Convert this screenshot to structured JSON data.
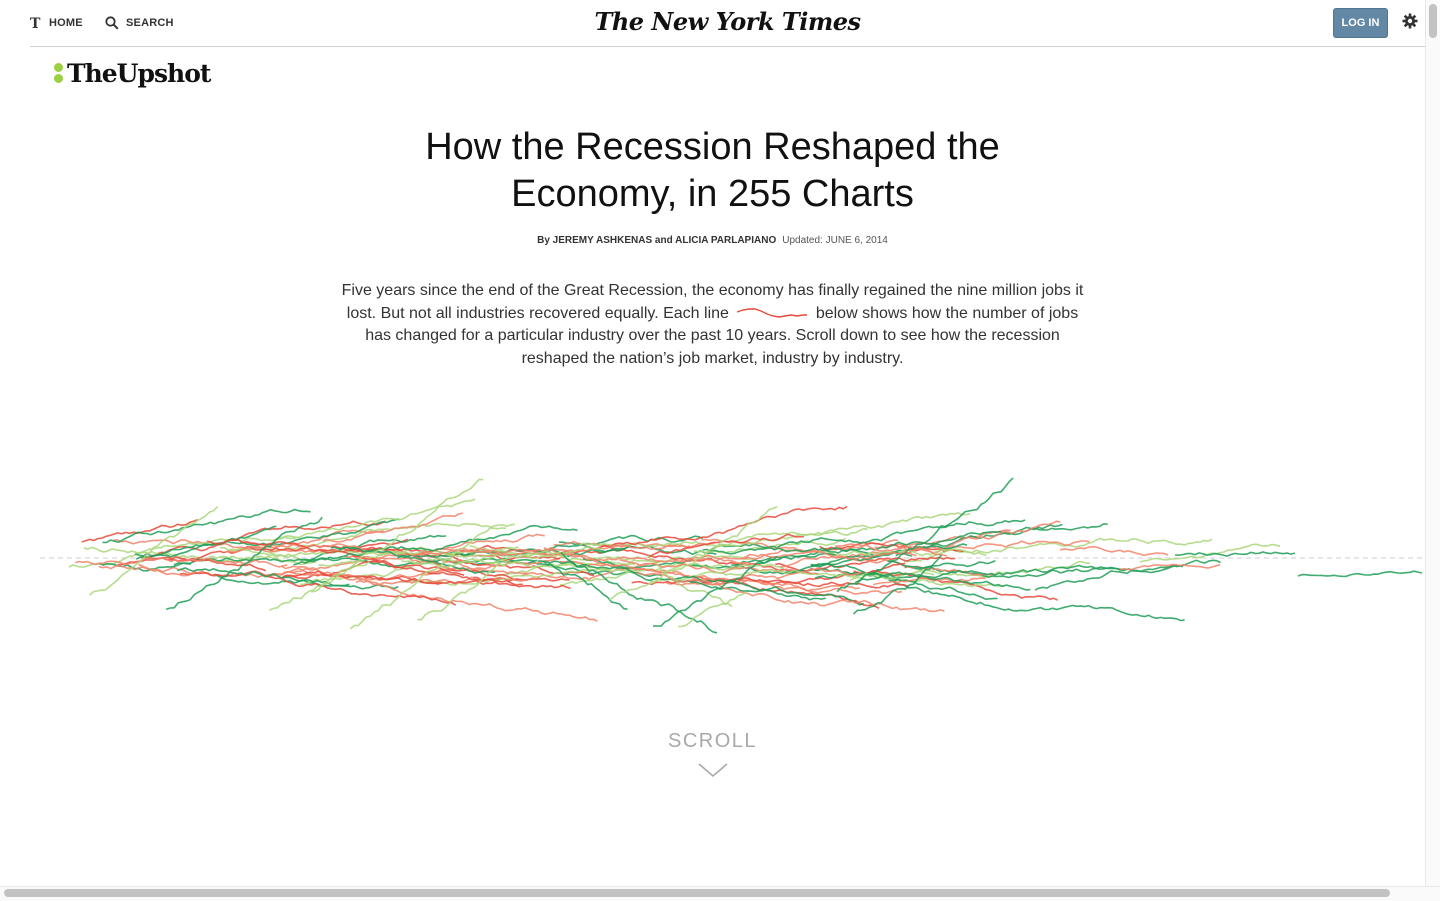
{
  "nav": {
    "home_label": "HOME",
    "search_label": "SEARCH",
    "masthead": "The New York Times",
    "login_label": "LOG IN"
  },
  "section": {
    "logo_text": "TheUpshot"
  },
  "article": {
    "headline_line1": "How the Recession Reshaped the",
    "headline_line2": "Economy, in 255 Charts",
    "byline": "By JEREMY ASHKENAS and ALICIA PARLAPIANO",
    "updated": "Updated: JUNE 6, 2014",
    "intro_before": "Five years since the end of the Great Recession, the economy has finally regained the nine million jobs it lost. But not all industries recovered equally. Each line",
    "intro_after": "below shows how the number of jobs has changed for a particular industry over the past 10 years. Scroll down to see how the recession reshaped the nation’s job market, industry by  industry."
  },
  "scroll": {
    "label": "SCROLL"
  },
  "colors": {
    "dark_green": "#1f9e56",
    "light_green": "#a9d77a",
    "red": "#e8493a",
    "salmon": "#f2826a",
    "login_bg": "#6288a5",
    "logo_dots": "#9cd040"
  }
}
